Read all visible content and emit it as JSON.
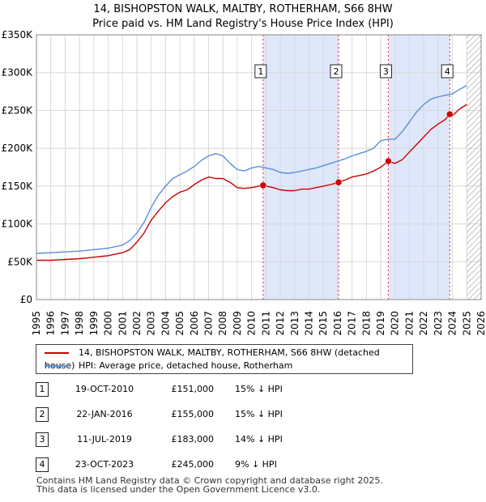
{
  "title_line1": "14, BISHOPSTON WALK, MALTBY, ROTHERHAM, S66 8HW",
  "title_line2": "Price paid vs. HM Land Registry's House Price Index (HPI)",
  "chart_data": {
    "type": "line",
    "title": "14, BISHOPSTON WALK, MALTBY, ROTHERHAM, S66 8HW — Price paid vs. HM Land Registry's House Price Index (HPI)",
    "xlim": [
      1995,
      2026
    ],
    "ylim": [
      0,
      350000
    ],
    "x_ticks": [
      1995,
      1996,
      1997,
      1998,
      1999,
      2000,
      2001,
      2002,
      2003,
      2004,
      2005,
      2006,
      2007,
      2008,
      2009,
      2010,
      2011,
      2012,
      2013,
      2014,
      2015,
      2016,
      2017,
      2018,
      2019,
      2020,
      2021,
      2022,
      2023,
      2024,
      2025,
      2026
    ],
    "y_ticks": [
      0,
      50000,
      100000,
      150000,
      200000,
      250000,
      300000,
      350000
    ],
    "y_tick_labels": [
      "£0",
      "£50K",
      "£100K",
      "£150K",
      "£200K",
      "£250K",
      "£300K",
      "£350K"
    ],
    "grid": true,
    "future_hatch_from": 2025.0,
    "ownership_shading": [
      [
        2010.8,
        2016.06
      ],
      [
        2019.53,
        2023.81
      ]
    ],
    "colors": {
      "property": "#cc0000",
      "hpi": "#5b8fd6",
      "shade": "#dfe7fb",
      "vline": "#cc0000"
    },
    "series": [
      {
        "name": "14, BISHOPSTON WALK, MALTBY, ROTHERHAM, S66 8HW (detached house)",
        "color": "#cc0000",
        "x": [
          1995.0,
          1996.0,
          1997.0,
          1998.0,
          1999.0,
          2000.0,
          2001.0,
          2001.5,
          2002.0,
          2002.5,
          2003.0,
          2003.5,
          2004.0,
          2004.5,
          2005.0,
          2005.5,
          2006.0,
          2006.5,
          2007.0,
          2007.5,
          2008.0,
          2008.5,
          2009.0,
          2009.5,
          2010.0,
          2010.8,
          2011.5,
          2012.0,
          2012.5,
          2013.0,
          2013.5,
          2014.0,
          2014.5,
          2015.0,
          2015.5,
          2016.06,
          2016.5,
          2017.0,
          2017.5,
          2018.0,
          2018.5,
          2019.0,
          2019.53,
          2020.0,
          2020.5,
          2021.0,
          2021.5,
          2022.0,
          2022.5,
          2023.0,
          2023.5,
          2023.81,
          2024.0,
          2024.5,
          2025.0
        ],
        "y": [
          52000,
          52000,
          53000,
          54000,
          56000,
          58000,
          62000,
          66000,
          76000,
          88000,
          105000,
          117000,
          128000,
          136000,
          142000,
          145000,
          152000,
          158000,
          162000,
          160000,
          160000,
          155000,
          148000,
          147000,
          148000,
          151000,
          148000,
          145000,
          144000,
          144000,
          146000,
          146000,
          148000,
          150000,
          152000,
          155000,
          158000,
          162000,
          164000,
          166000,
          170000,
          175000,
          183000,
          180000,
          185000,
          195000,
          205000,
          215000,
          225000,
          232000,
          238000,
          245000,
          243000,
          252000,
          258000
        ]
      },
      {
        "name": "HPI: Average price, detached house, Rotherham",
        "color": "#5b8fd6",
        "x": [
          1995.0,
          1996.0,
          1997.0,
          1998.0,
          1999.0,
          2000.0,
          2001.0,
          2001.5,
          2002.0,
          2002.5,
          2003.0,
          2003.5,
          2004.0,
          2004.5,
          2005.0,
          2005.5,
          2006.0,
          2006.5,
          2007.0,
          2007.5,
          2008.0,
          2008.5,
          2009.0,
          2009.5,
          2010.0,
          2010.5,
          2011.0,
          2011.5,
          2012.0,
          2012.5,
          2013.0,
          2013.5,
          2014.0,
          2014.5,
          2015.0,
          2015.5,
          2016.0,
          2016.5,
          2017.0,
          2017.5,
          2018.0,
          2018.5,
          2019.0,
          2019.5,
          2020.0,
          2020.5,
          2021.0,
          2021.5,
          2022.0,
          2022.5,
          2023.0,
          2023.5,
          2024.0,
          2024.5,
          2025.0
        ],
        "y": [
          61000,
          62000,
          63000,
          64000,
          66000,
          68000,
          72000,
          78000,
          88000,
          102000,
          122000,
          138000,
          150000,
          160000,
          165000,
          170000,
          176000,
          184000,
          190000,
          193000,
          190000,
          180000,
          172000,
          170000,
          174000,
          176000,
          174000,
          172000,
          168000,
          167000,
          168000,
          170000,
          172000,
          174000,
          177000,
          180000,
          183000,
          186000,
          190000,
          193000,
          196000,
          200000,
          210000,
          212000,
          212000,
          222000,
          235000,
          248000,
          258000,
          265000,
          268000,
          270000,
          272000,
          278000,
          283000
        ]
      }
    ],
    "sales": [
      {
        "n": "1",
        "x": 2010.8,
        "price": 151000
      },
      {
        "n": "2",
        "x": 2016.06,
        "price": 155000
      },
      {
        "n": "3",
        "x": 2019.53,
        "price": 183000
      },
      {
        "n": "4",
        "x": 2023.81,
        "price": 245000
      }
    ]
  },
  "legend": {
    "property_label": "14, BISHOPSTON WALK, MALTBY, ROTHERHAM, S66 8HW (detached house)",
    "hpi_label": "HPI: Average price, detached house, Rotherham"
  },
  "sales_table": [
    {
      "n": "1",
      "date": "19-OCT-2010",
      "price": "£151,000",
      "hpi": "15% ↓ HPI"
    },
    {
      "n": "2",
      "date": "22-JAN-2016",
      "price": "£155,000",
      "hpi": "15% ↓ HPI"
    },
    {
      "n": "3",
      "date": "11-JUL-2019",
      "price": "£183,000",
      "hpi": "14% ↓ HPI"
    },
    {
      "n": "4",
      "date": "23-OCT-2023",
      "price": "£245,000",
      "hpi": "9% ↓ HPI"
    }
  ],
  "footer_line1": "Contains HM Land Registry data © Crown copyright and database right 2025.",
  "footer_line2": "This data is licensed under the Open Government Licence v3.0."
}
